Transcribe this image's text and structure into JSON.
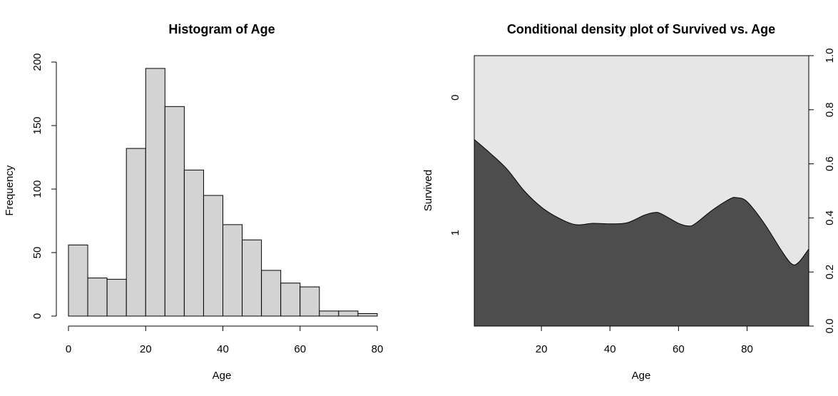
{
  "chart_data": [
    {
      "type": "bar",
      "title": "Histogram of Age",
      "xlabel": "Age",
      "ylabel": "Frequency",
      "bin_width": 5,
      "bin_starts": [
        0,
        5,
        10,
        15,
        20,
        25,
        30,
        35,
        40,
        45,
        50,
        55,
        60,
        65,
        70,
        75
      ],
      "values": [
        56,
        30,
        29,
        132,
        195,
        165,
        115,
        95,
        72,
        60,
        36,
        26,
        23,
        4,
        4,
        2
      ],
      "xlim": [
        0,
        80
      ],
      "ylim": [
        0,
        200
      ],
      "xticks": [
        "0",
        "20",
        "40",
        "60",
        "80"
      ],
      "yticks": [
        "0",
        "50",
        "100",
        "150",
        "200"
      ],
      "bar_color": "#d3d3d3",
      "grid": false
    },
    {
      "type": "area",
      "title": "Conditional density plot of Survived vs. Age",
      "xlabel": "Age",
      "ylabel": "Survived",
      "categories": [
        "0",
        "1"
      ],
      "xlim": [
        0.42,
        98
      ],
      "ylim": [
        0,
        1
      ],
      "xticks": [
        "20",
        "40",
        "60",
        "80"
      ],
      "yticks_right": [
        "0.0",
        "0.2",
        "0.4",
        "0.6",
        "0.8",
        "1.0"
      ],
      "x": [
        0.42,
        5,
        10,
        15,
        20,
        25,
        30,
        35,
        40,
        45,
        50,
        53,
        55,
        60,
        63,
        65,
        70,
        75,
        77,
        80,
        85,
        90,
        93,
        95,
        98
      ],
      "y": [
        0.69,
        0.64,
        0.58,
        0.5,
        0.44,
        0.4,
        0.375,
        0.38,
        0.378,
        0.382,
        0.41,
        0.42,
        0.415,
        0.38,
        0.37,
        0.38,
        0.43,
        0.47,
        0.475,
        0.46,
        0.38,
        0.28,
        0.23,
        0.235,
        0.285
      ],
      "colors": {
        "survived_1": "#4d4d4d",
        "survived_0": "#e6e6e6"
      },
      "grid": false
    }
  ]
}
